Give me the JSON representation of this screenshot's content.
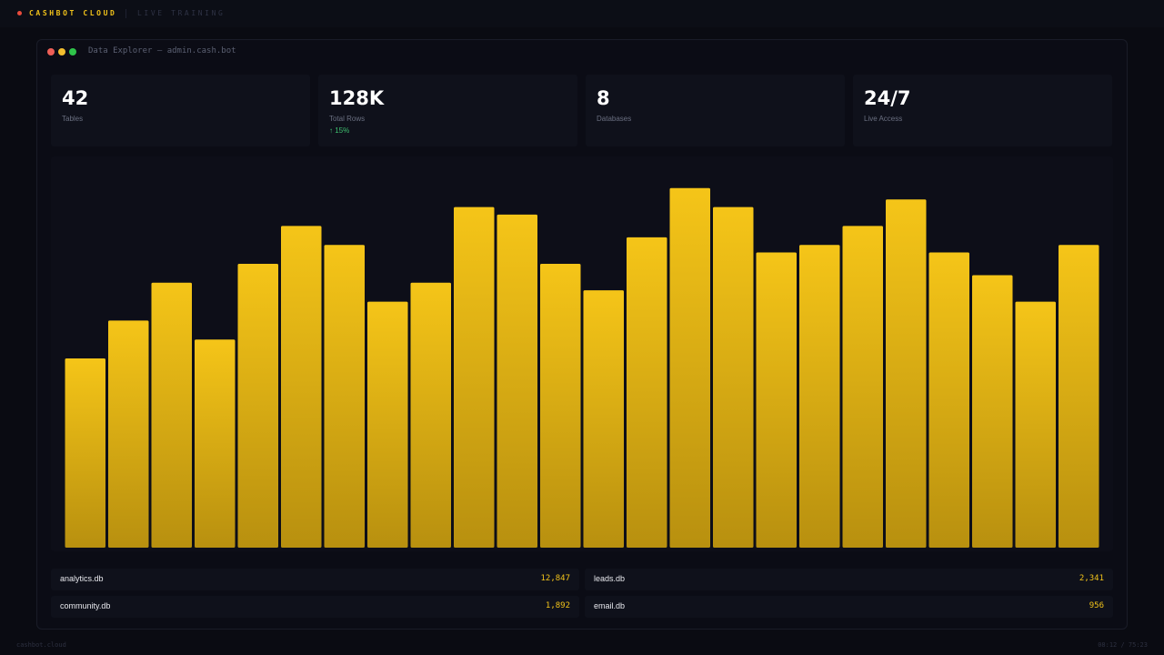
{
  "topbar": {
    "brand": "CASHBOT CLOUD",
    "session": "LIVE TRAINING"
  },
  "window": {
    "title": "Data Explorer — admin.cash.bot"
  },
  "stats": [
    {
      "value": "42",
      "label": "Tables"
    },
    {
      "value": "128K",
      "label": "Total Rows",
      "delta": "↑ 15%"
    },
    {
      "value": "8",
      "label": "Databases"
    },
    {
      "value": "24/7",
      "label": "Live Access"
    }
  ],
  "colors": {
    "bar_top": "#f5c518",
    "bar_bottom": "#b8900f",
    "accent": "#f2c31a",
    "positive": "#3fc070"
  },
  "chart_data": {
    "type": "bar",
    "values": [
      50,
      60,
      70,
      55,
      75,
      85,
      80,
      65,
      70,
      90,
      88,
      75,
      68,
      82,
      95,
      90,
      78,
      80,
      85,
      92,
      78,
      72,
      65,
      80
    ],
    "ylim": [
      0,
      100
    ],
    "grid": false,
    "legend": "none"
  },
  "databases": [
    {
      "name": "analytics.db",
      "count": "12,847"
    },
    {
      "name": "leads.db",
      "count": "2,341"
    },
    {
      "name": "community.db",
      "count": "1,892"
    },
    {
      "name": "email.db",
      "count": "956"
    }
  ],
  "footer": {
    "site": "cashbot.cloud",
    "time": "08:12 / 75:23"
  }
}
